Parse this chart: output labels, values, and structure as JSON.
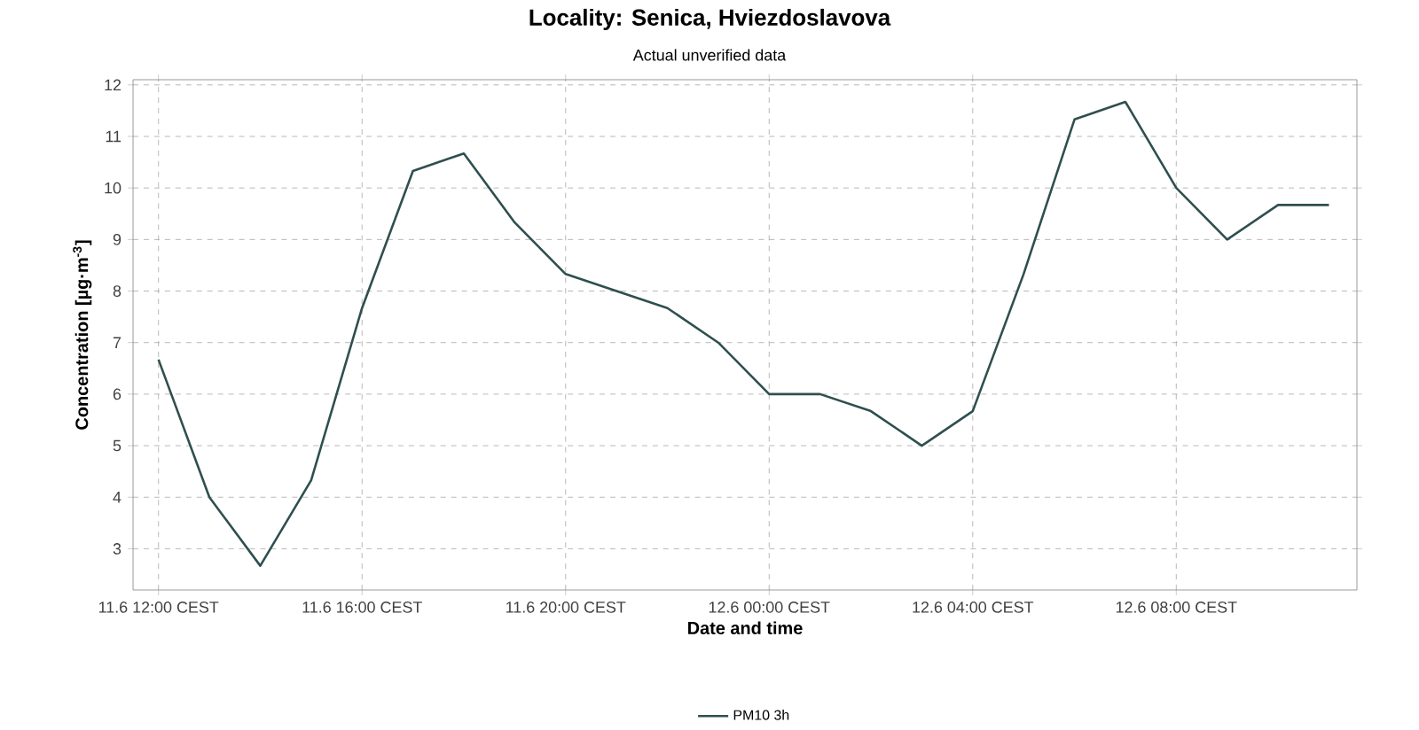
{
  "chart_data": {
    "type": "line",
    "title": "Locality: Senica, Hviezdoslavova",
    "subtitle": "Actual unverified data",
    "xlabel": "Date and time",
    "ylabel": "Concentration [µg·m$^{-3}$]",
    "categories": [
      "11.6 12:00 CEST",
      null,
      null,
      null,
      "11.6 16:00 CEST",
      null,
      null,
      null,
      "11.6 20:00 CEST",
      null,
      null,
      null,
      "12.6 00:00 CEST",
      null,
      null,
      null,
      "12.6 04:00 CEST",
      null,
      null,
      null,
      "12.6 08:00 CEST",
      null,
      null,
      null
    ],
    "series": [
      {
        "name": "PM10 3h",
        "color": "#2f4f4f",
        "values": [
          6.67,
          4,
          2.67,
          4.33,
          7.67,
          10.33,
          10.67,
          9.33,
          8.33,
          8,
          7.67,
          7,
          6,
          6,
          5.67,
          5,
          5.67,
          8.33,
          11.33,
          11.67,
          10,
          9,
          9.67,
          9.67
        ]
      }
    ],
    "ylim": [
      2.2,
      12.1
    ],
    "yticks": [
      3,
      4,
      5,
      6,
      7,
      8,
      9,
      10,
      11,
      12
    ],
    "grid": true,
    "legend": "bottom",
    "marker": "none",
    "line_style": "solid"
  }
}
